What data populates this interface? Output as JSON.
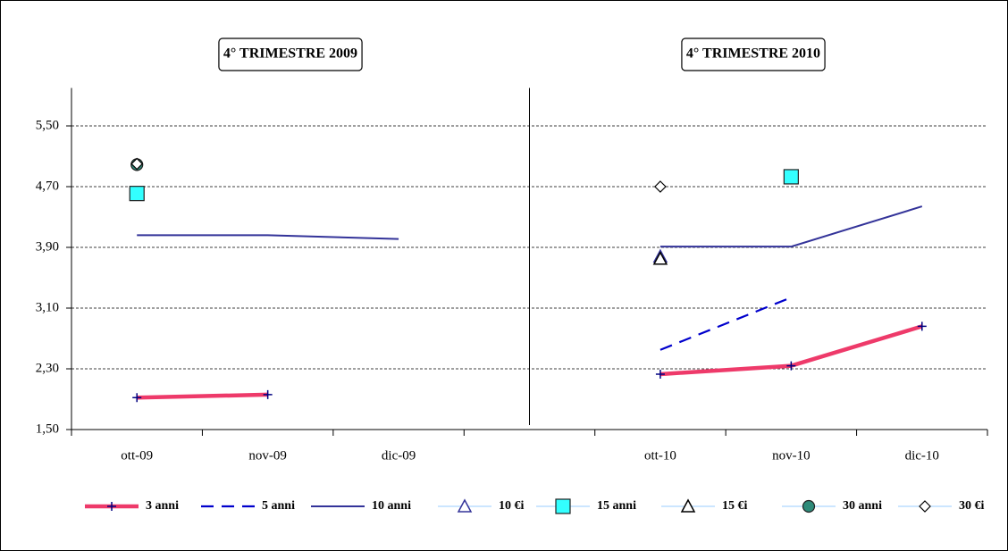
{
  "chart_data": {
    "type": "line",
    "annotations": [
      "4° TRIMESTRE 2009",
      "4° TRIMESTRE 2010"
    ],
    "categories": [
      "ott-09",
      "nov-09",
      "dic-09",
      null,
      "ott-10",
      "nov-10",
      "dic-10"
    ],
    "ylim": [
      1.5,
      6.0
    ],
    "yticks": [
      {
        "value": 1.5,
        "label": "1,50"
      },
      {
        "value": 2.3,
        "label": "2,30"
      },
      {
        "value": 3.1,
        "label": "3,10"
      },
      {
        "value": 3.9,
        "label": "3,90"
      },
      {
        "value": 4.7,
        "label": "4,70"
      },
      {
        "value": 5.5,
        "label": "5,50"
      }
    ],
    "grid": true,
    "legend": "bottom",
    "series": [
      {
        "name": "3 anni",
        "color": "#ee3a6a",
        "line": "thick",
        "marker": "plus",
        "values": [
          1.92,
          1.96,
          null,
          null,
          2.23,
          2.34,
          2.86
        ]
      },
      {
        "name": "5 anni",
        "color": "#0000cc",
        "line": "dashed",
        "marker": "none",
        "values": [
          null,
          null,
          null,
          null,
          2.55,
          3.24,
          null
        ]
      },
      {
        "name": "10 anni",
        "color": "#333399",
        "line": "solid",
        "marker": "none",
        "values": [
          4.06,
          4.06,
          4.01,
          null,
          3.91,
          3.91,
          4.44
        ]
      },
      {
        "name": "10 €i",
        "color": "#333399",
        "line": "none",
        "marker": "triangle",
        "values": [
          null,
          null,
          null,
          null,
          3.78,
          null,
          null
        ]
      },
      {
        "name": "15 anni",
        "color": "#33ffff",
        "line": "none",
        "marker": "square",
        "values": [
          4.61,
          null,
          null,
          null,
          null,
          4.83,
          null
        ]
      },
      {
        "name": "15 €i",
        "color": "#000000",
        "line": "none",
        "marker": "triangle",
        "values": [
          null,
          null,
          null,
          null,
          3.75,
          null,
          null
        ]
      },
      {
        "name": "30 anni",
        "color": "#2e8b7a",
        "line": "none",
        "marker": "circle",
        "values": [
          4.99,
          null,
          null,
          null,
          null,
          null,
          null
        ]
      },
      {
        "name": "30 €i",
        "color": "#ffffff",
        "line": "none",
        "marker": "diamond",
        "values": [
          5.0,
          null,
          null,
          null,
          4.7,
          null,
          null
        ]
      }
    ]
  }
}
